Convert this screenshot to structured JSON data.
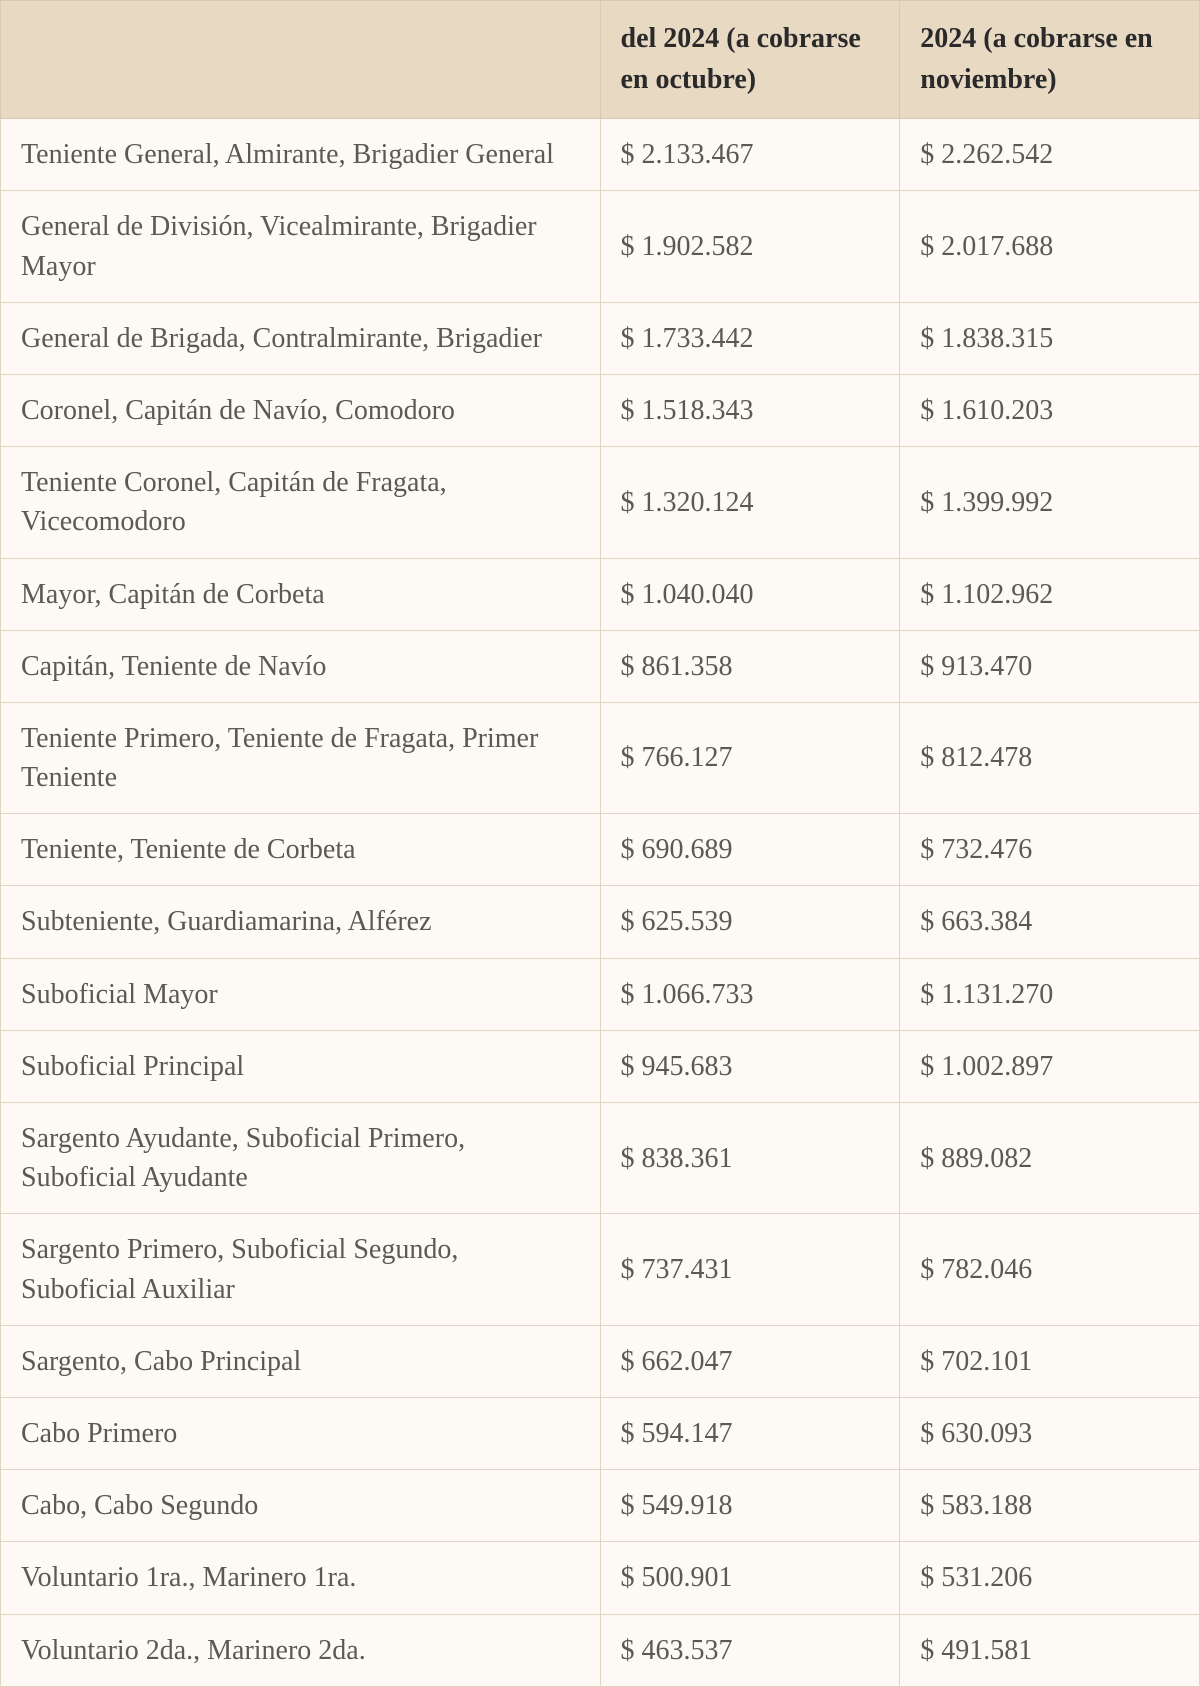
{
  "table": {
    "type": "table",
    "background_color": "#fdfaf5",
    "header_background": "#e8d9c3",
    "border_color": "#e0d5c2",
    "header_border_color": "#d8c9b0",
    "text_color": "#5a5a52",
    "header_text_color": "#2a2a2a",
    "font_family": "Georgia, serif",
    "cell_fontsize": 28,
    "header_fontsize": 28,
    "columns": [
      {
        "key": "rank",
        "header": "",
        "width_pct": 50
      },
      {
        "key": "oct",
        "header": "del 2024\n(a cobrarse en octubre)",
        "width_pct": 25
      },
      {
        "key": "nov",
        "header": "2024\n(a cobrarse en noviembre)",
        "width_pct": 25
      }
    ],
    "rows": [
      {
        "rank": "Teniente General, Almirante, Brigadier General",
        "oct": "$ 2.133.467",
        "nov": "$ 2.262.542"
      },
      {
        "rank": "General de División, Vicealmirante, Brigadier Mayor",
        "oct": "$ 1.902.582",
        "nov": "$ 2.017.688"
      },
      {
        "rank": "General de Brigada, Contralmirante, Brigadier",
        "oct": "$ 1.733.442",
        "nov": "$ 1.838.315"
      },
      {
        "rank": "Coronel, Capitán de Navío, Comodoro",
        "oct": "$ 1.518.343",
        "nov": "$ 1.610.203"
      },
      {
        "rank": "Teniente Coronel, Capitán de Fragata, Vicecomodoro",
        "oct": "$ 1.320.124",
        "nov": "$ 1.399.992"
      },
      {
        "rank": "Mayor, Capitán de Corbeta",
        "oct": "$ 1.040.040",
        "nov": "$ 1.102.962"
      },
      {
        "rank": "Capitán, Teniente de Navío",
        "oct": "$ 861.358",
        "nov": "$ 913.470"
      },
      {
        "rank": "Teniente Primero, Teniente de Fragata, Primer Teniente",
        "oct": "$ 766.127",
        "nov": "$ 812.478"
      },
      {
        "rank": "Teniente, Teniente de Corbeta",
        "oct": "$ 690.689",
        "nov": "$ 732.476"
      },
      {
        "rank": "Subteniente, Guardiamarina, Alférez",
        "oct": "$ 625.539",
        "nov": "$ 663.384"
      },
      {
        "rank": "Suboficial Mayor",
        "oct": "$ 1.066.733",
        "nov": "$ 1.131.270"
      },
      {
        "rank": "Suboficial Principal",
        "oct": "$ 945.683",
        "nov": "$ 1.002.897"
      },
      {
        "rank": "Sargento Ayudante, Suboficial Primero, Suboficial Ayudante",
        "oct": "$ 838.361",
        "nov": "$ 889.082"
      },
      {
        "rank": "Sargento Primero, Suboficial Segundo, Suboficial Auxiliar",
        "oct": "$ 737.431",
        "nov": "$ 782.046"
      },
      {
        "rank": "Sargento, Cabo Principal",
        "oct": "$ 662.047",
        "nov": "$ 702.101"
      },
      {
        "rank": "Cabo Primero",
        "oct": "$ 594.147",
        "nov": "$ 630.093"
      },
      {
        "rank": "Cabo, Cabo Segundo",
        "oct": "$ 549.918",
        "nov": "$ 583.188"
      },
      {
        "rank": "Voluntario 1ra., Marinero 1ra.",
        "oct": "$ 500.901",
        "nov": "$ 531.206"
      },
      {
        "rank": "Voluntario 2da., Marinero 2da.",
        "oct": "$ 463.537",
        "nov": "$ 491.581"
      }
    ]
  }
}
